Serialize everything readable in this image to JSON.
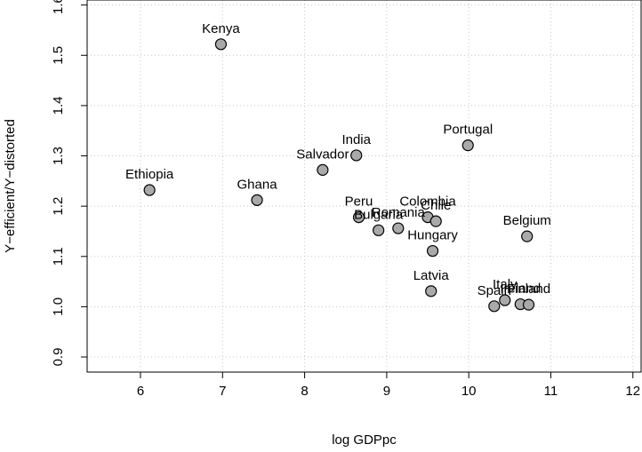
{
  "chart_data": {
    "type": "scatter",
    "title": "",
    "xlabel": "log GDPpc",
    "ylabel": "Y−efficient/Y−distorted",
    "xlim": [
      5.35,
      12.1
    ],
    "ylim": [
      0.87,
      1.61
    ],
    "xticks": [
      6,
      7,
      8,
      9,
      10,
      11,
      12
    ],
    "yticks": [
      0.9,
      1.0,
      1.1,
      1.2,
      1.3,
      1.4,
      1.5,
      1.6
    ],
    "xtick_labels": [
      "6",
      "7",
      "8",
      "9",
      "10",
      "11",
      "12"
    ],
    "ytick_labels": [
      "0.9",
      "1.0",
      "1.1",
      "1.2",
      "1.3",
      "1.4",
      "1.5",
      "1.6"
    ],
    "grid": true,
    "points": [
      {
        "label": "Kenya",
        "x": 6.98,
        "y": 1.522
      },
      {
        "label": "Ethiopia",
        "x": 6.11,
        "y": 1.232
      },
      {
        "label": "Ghana",
        "x": 7.42,
        "y": 1.212
      },
      {
        "label": "Salvador",
        "x": 8.22,
        "y": 1.272
      },
      {
        "label": "India",
        "x": 8.63,
        "y": 1.301
      },
      {
        "label": "Portugal",
        "x": 9.99,
        "y": 1.321
      },
      {
        "label": "Peru",
        "x": 8.66,
        "y": 1.178
      },
      {
        "label": "Bulgaria",
        "x": 8.9,
        "y": 1.152
      },
      {
        "label": "Romania",
        "x": 9.14,
        "y": 1.156
      },
      {
        "label": "Colombia",
        "x": 9.5,
        "y": 1.178
      },
      {
        "label": "Chile",
        "x": 9.6,
        "y": 1.17
      },
      {
        "label": "Hungary",
        "x": 9.56,
        "y": 1.111
      },
      {
        "label": "Belgium",
        "x": 10.71,
        "y": 1.14
      },
      {
        "label": "Latvia",
        "x": 9.54,
        "y": 1.031
      },
      {
        "label": "Spain",
        "x": 10.31,
        "y": 1.001
      },
      {
        "label": "Italy",
        "x": 10.44,
        "y": 1.013
      },
      {
        "label": "Ireland",
        "x": 10.63,
        "y": 1.005
      },
      {
        "label": "Finland",
        "x": 10.73,
        "y": 1.004
      }
    ]
  }
}
